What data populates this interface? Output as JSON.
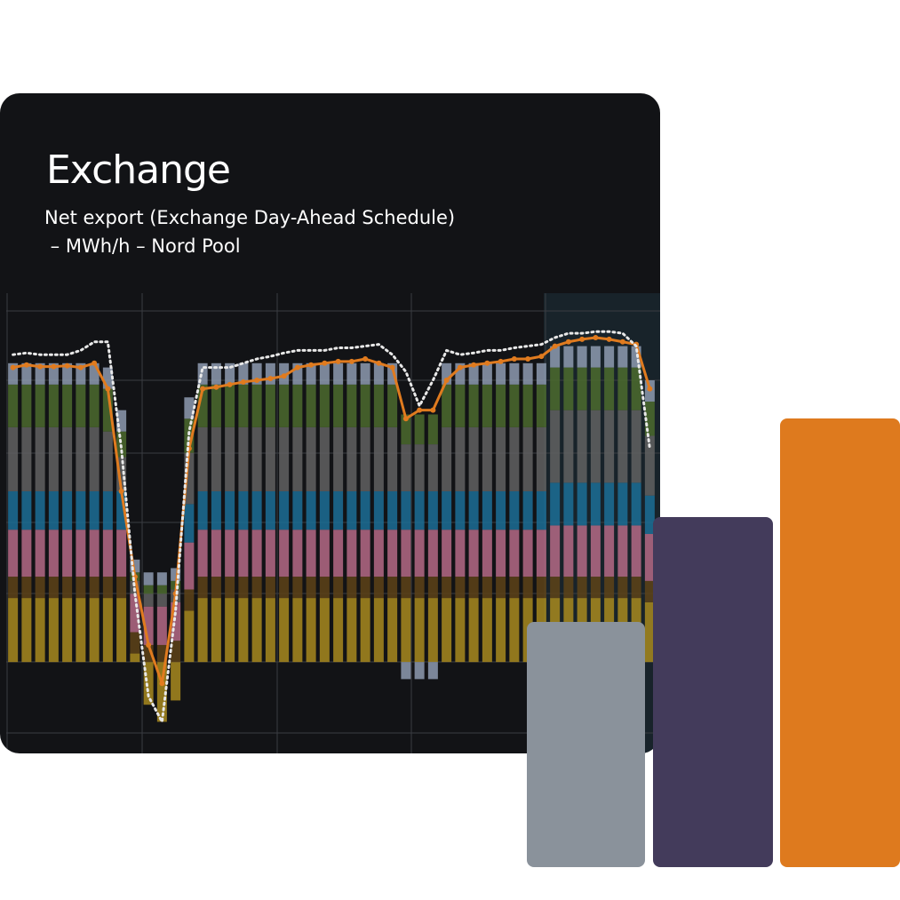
{
  "chart_data": {
    "type": "bar",
    "stacked": true,
    "title": "Exchange",
    "subtitle": [
      "Net export (Exchange Day-Ahead Schedule)",
      " – MWh/h – Nord Pool"
    ],
    "categories": [
      null,
      null,
      null,
      null,
      null,
      null,
      null,
      null,
      null,
      null,
      null,
      null,
      null,
      null,
      null,
      null,
      null,
      null,
      null,
      null,
      null,
      null,
      null,
      null,
      null,
      null,
      null,
      null,
      null,
      null,
      null,
      null,
      null,
      null,
      null,
      null,
      null,
      null,
      null,
      null,
      null,
      null,
      null,
      null,
      null,
      null,
      null,
      null
    ],
    "ylim": [
      -107,
      432
    ],
    "grid": true,
    "series": [
      {
        "type": "bar",
        "color": "#a88a1f",
        "values": [
          75,
          75,
          75,
          75,
          75,
          75,
          75,
          75,
          75,
          10,
          -50,
          -70,
          -45,
          60,
          75,
          75,
          75,
          75,
          75,
          75,
          75,
          75,
          75,
          75,
          75,
          75,
          75,
          75,
          75,
          75,
          75,
          75,
          75,
          75,
          75,
          75,
          75,
          75,
          75,
          75,
          75,
          75,
          75,
          75,
          75,
          75,
          75,
          70
        ]
      },
      {
        "type": "bar",
        "color": "#5e4317",
        "values": [
          25,
          25,
          25,
          25,
          25,
          25,
          25,
          25,
          25,
          25,
          20,
          20,
          25,
          25,
          25,
          25,
          25,
          25,
          25,
          25,
          25,
          25,
          25,
          25,
          25,
          25,
          25,
          25,
          25,
          25,
          25,
          25,
          25,
          25,
          25,
          25,
          25,
          25,
          25,
          25,
          25,
          25,
          25,
          25,
          25,
          25,
          25,
          25
        ]
      },
      {
        "type": "bar",
        "color": "#b56a86",
        "values": [
          55,
          55,
          55,
          55,
          55,
          55,
          55,
          55,
          55,
          45,
          45,
          45,
          45,
          55,
          55,
          55,
          55,
          55,
          55,
          55,
          55,
          55,
          55,
          55,
          55,
          55,
          55,
          55,
          55,
          55,
          55,
          55,
          55,
          55,
          55,
          55,
          55,
          55,
          55,
          55,
          60,
          60,
          60,
          60,
          60,
          60,
          60,
          55
        ]
      },
      {
        "type": "bar",
        "color": "#1c6f97",
        "values": [
          45,
          45,
          45,
          45,
          45,
          45,
          45,
          45,
          45,
          0,
          0,
          0,
          0,
          45,
          45,
          45,
          45,
          45,
          45,
          45,
          45,
          45,
          45,
          45,
          45,
          45,
          45,
          45,
          45,
          45,
          45,
          45,
          45,
          45,
          45,
          45,
          45,
          45,
          45,
          45,
          50,
          50,
          50,
          50,
          50,
          50,
          50,
          45
        ]
      },
      {
        "type": "bar",
        "color": "#616161",
        "values": [
          75,
          75,
          75,
          75,
          75,
          75,
          75,
          70,
          40,
          15,
          15,
          15,
          15,
          60,
          75,
          75,
          75,
          75,
          75,
          75,
          75,
          75,
          75,
          75,
          75,
          75,
          75,
          75,
          75,
          55,
          55,
          55,
          75,
          75,
          75,
          75,
          75,
          75,
          75,
          75,
          85,
          85,
          85,
          85,
          85,
          85,
          85,
          70
        ]
      },
      {
        "type": "bar",
        "color": "#4c6b2e",
        "values": [
          50,
          50,
          50,
          50,
          50,
          50,
          50,
          50,
          30,
          10,
          10,
          10,
          10,
          40,
          50,
          50,
          50,
          50,
          50,
          50,
          50,
          50,
          50,
          50,
          50,
          50,
          50,
          50,
          50,
          35,
          35,
          35,
          50,
          50,
          50,
          50,
          50,
          50,
          50,
          50,
          50,
          50,
          50,
          50,
          50,
          50,
          50,
          40
        ]
      },
      {
        "type": "bar",
        "color": "#8e9bb0",
        "values": [
          25,
          25,
          25,
          25,
          25,
          25,
          25,
          25,
          25,
          15,
          15,
          15,
          15,
          25,
          25,
          25,
          25,
          25,
          25,
          25,
          25,
          25,
          25,
          25,
          25,
          25,
          25,
          25,
          25,
          -20,
          -20,
          -20,
          25,
          25,
          25,
          25,
          25,
          25,
          25,
          25,
          25,
          25,
          25,
          25,
          25,
          25,
          25,
          25
        ]
      },
      {
        "type": "line",
        "color": "#e07b1f",
        "dash": false,
        "values": [
          345,
          348,
          346,
          346,
          347,
          345,
          350,
          320,
          200,
          100,
          20,
          -25,
          80,
          250,
          320,
          322,
          325,
          328,
          330,
          332,
          335,
          345,
          348,
          350,
          352,
          352,
          355,
          350,
          345,
          285,
          295,
          295,
          330,
          345,
          348,
          350,
          352,
          355,
          355,
          358,
          370,
          375,
          378,
          380,
          378,
          375,
          372,
          320
        ]
      },
      {
        "type": "line",
        "color": "#e8e8e8",
        "dash": true,
        "values": [
          360,
          362,
          360,
          360,
          360,
          365,
          375,
          375,
          250,
          80,
          -40,
          -70,
          60,
          270,
          345,
          345,
          345,
          350,
          355,
          358,
          362,
          365,
          365,
          365,
          368,
          368,
          370,
          372,
          360,
          340,
          300,
          330,
          365,
          360,
          362,
          365,
          365,
          368,
          370,
          372,
          380,
          385,
          385,
          387,
          387,
          385,
          370,
          250
        ]
      }
    ]
  }
}
